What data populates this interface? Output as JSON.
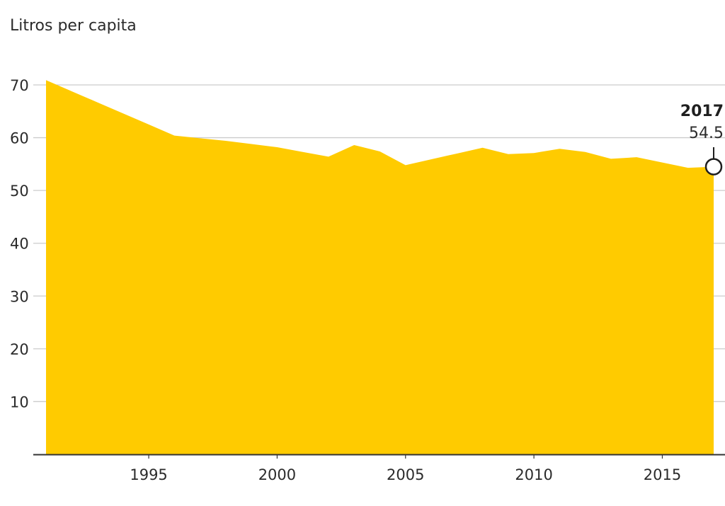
{
  "chart_data": {
    "type": "area",
    "unit_label": "Litros per capita",
    "x": [
      1991,
      1992,
      1993,
      1994,
      1995,
      1996,
      1997,
      1998,
      1999,
      2000,
      2001,
      2002,
      2003,
      2004,
      2005,
      2006,
      2007,
      2008,
      2009,
      2010,
      2011,
      2012,
      2013,
      2014,
      2015,
      2016,
      2017
    ],
    "values": [
      70.9,
      68.8,
      66.7,
      64.6,
      62.5,
      60.4,
      59.9,
      59.4,
      58.8,
      58.2,
      57.3,
      56.4,
      58.6,
      57.4,
      54.8,
      55.9,
      57.0,
      58.1,
      56.9,
      57.1,
      57.9,
      57.3,
      56.0,
      56.3,
      55.3,
      54.3,
      54.5
    ],
    "xlim": [
      1991,
      2017
    ],
    "ylim": [
      0,
      70
    ],
    "x_ticks": [
      "1995",
      "2000",
      "2005",
      "2010",
      "2015"
    ],
    "y_ticks": [
      "10",
      "20",
      "30",
      "40",
      "50",
      "60",
      "70"
    ],
    "grid": true,
    "colors": {
      "area": "#FFCB00",
      "grid": "#cccccc",
      "axis": "#333333"
    },
    "annotation": {
      "year": "2017",
      "value": "54.5"
    }
  }
}
